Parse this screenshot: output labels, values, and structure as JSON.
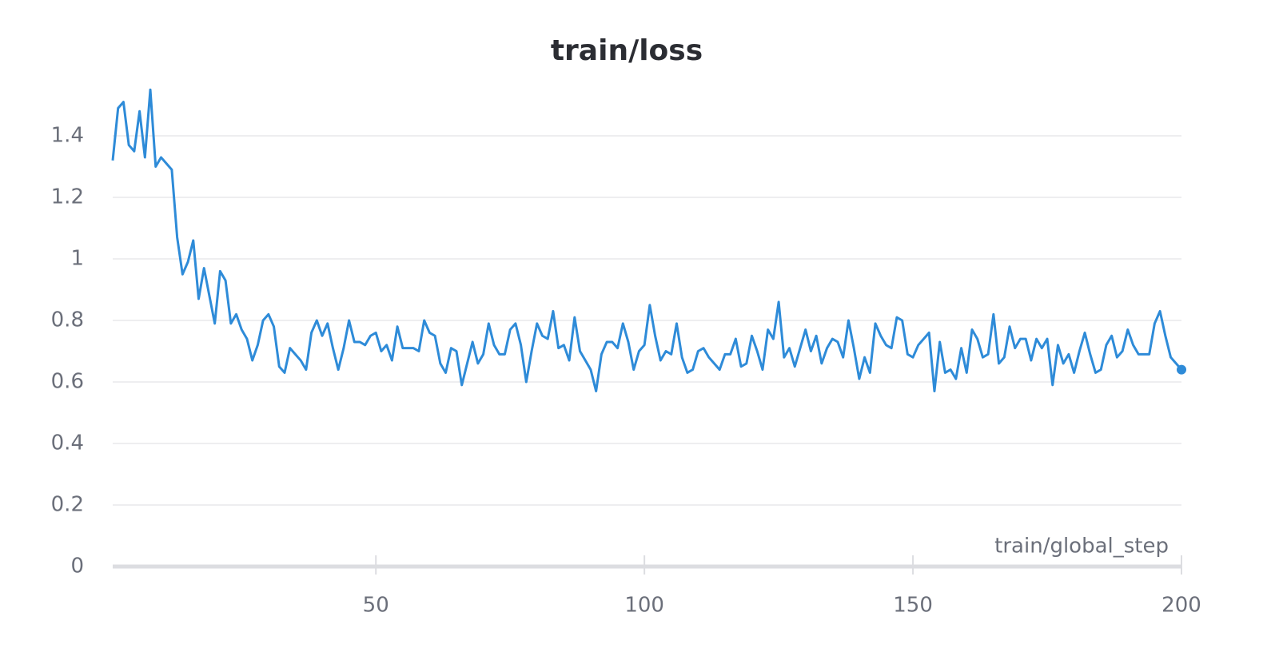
{
  "chart_data": {
    "type": "line",
    "title": "train/loss",
    "x_label": "train/global_step",
    "x": [
      1,
      2,
      3,
      4,
      5,
      6,
      7,
      8,
      9,
      10,
      11,
      12,
      13,
      14,
      15,
      16,
      17,
      18,
      19,
      20,
      21,
      22,
      23,
      24,
      25,
      26,
      27,
      28,
      29,
      30,
      31,
      32,
      33,
      34,
      35,
      36,
      37,
      38,
      39,
      40,
      41,
      42,
      43,
      44,
      45,
      46,
      47,
      48,
      49,
      50,
      51,
      52,
      53,
      54,
      55,
      56,
      57,
      58,
      59,
      60,
      61,
      62,
      63,
      64,
      65,
      66,
      67,
      68,
      69,
      70,
      71,
      72,
      73,
      74,
      75,
      76,
      77,
      78,
      79,
      80,
      81,
      82,
      83,
      84,
      85,
      86,
      87,
      88,
      89,
      90,
      91,
      92,
      93,
      94,
      95,
      96,
      97,
      98,
      99,
      100,
      101,
      102,
      103,
      104,
      105,
      106,
      107,
      108,
      109,
      110,
      111,
      112,
      113,
      114,
      115,
      116,
      117,
      118,
      119,
      120,
      121,
      122,
      123,
      124,
      125,
      126,
      127,
      128,
      129,
      130,
      131,
      132,
      133,
      134,
      135,
      136,
      137,
      138,
      139,
      140,
      141,
      142,
      143,
      144,
      145,
      146,
      147,
      148,
      149,
      150,
      151,
      152,
      153,
      154,
      155,
      156,
      157,
      158,
      159,
      160,
      161,
      162,
      163,
      164,
      165,
      166,
      167,
      168,
      169,
      170,
      171,
      172,
      173,
      174,
      175,
      176,
      177,
      178,
      179,
      180,
      181,
      182,
      183,
      184,
      185,
      186,
      187,
      188,
      189,
      190,
      191,
      192,
      193,
      194,
      195,
      196,
      197,
      198,
      199,
      200
    ],
    "series": [
      {
        "name": "train/loss",
        "color": "#2e8bd8",
        "values": [
          1.32,
          1.49,
          1.51,
          1.37,
          1.35,
          1.48,
          1.33,
          1.55,
          1.3,
          1.33,
          1.31,
          1.29,
          1.07,
          0.95,
          0.99,
          1.06,
          0.87,
          0.97,
          0.88,
          0.79,
          0.96,
          0.93,
          0.79,
          0.82,
          0.77,
          0.74,
          0.67,
          0.72,
          0.8,
          0.82,
          0.78,
          0.65,
          0.63,
          0.71,
          0.69,
          0.67,
          0.64,
          0.76,
          0.8,
          0.75,
          0.79,
          0.71,
          0.64,
          0.71,
          0.8,
          0.73,
          0.73,
          0.72,
          0.75,
          0.76,
          0.7,
          0.72,
          0.67,
          0.78,
          0.71,
          0.71,
          0.71,
          0.7,
          0.8,
          0.76,
          0.75,
          0.66,
          0.63,
          0.71,
          0.7,
          0.59,
          0.66,
          0.73,
          0.66,
          0.69,
          0.79,
          0.72,
          0.69,
          0.69,
          0.77,
          0.79,
          0.72,
          0.6,
          0.7,
          0.79,
          0.75,
          0.74,
          0.83,
          0.71,
          0.72,
          0.67,
          0.81,
          0.7,
          0.67,
          0.64,
          0.57,
          0.69,
          0.73,
          0.73,
          0.71,
          0.79,
          0.73,
          0.64,
          0.7,
          0.72,
          0.85,
          0.75,
          0.67,
          0.7,
          0.69,
          0.79,
          0.68,
          0.63,
          0.64,
          0.7,
          0.71,
          0.68,
          0.66,
          0.64,
          0.69,
          0.69,
          0.74,
          0.65,
          0.66,
          0.75,
          0.7,
          0.64,
          0.77,
          0.74,
          0.86,
          0.68,
          0.71,
          0.65,
          0.71,
          0.77,
          0.7,
          0.75,
          0.66,
          0.71,
          0.74,
          0.73,
          0.68,
          0.8,
          0.71,
          0.61,
          0.68,
          0.63,
          0.79,
          0.75,
          0.72,
          0.71,
          0.81,
          0.8,
          0.69,
          0.68,
          0.72,
          0.74,
          0.76,
          0.57,
          0.73,
          0.63,
          0.64,
          0.61,
          0.71,
          0.63,
          0.77,
          0.74,
          0.68,
          0.69,
          0.82,
          0.66,
          0.68,
          0.78,
          0.71,
          0.74,
          0.74,
          0.67,
          0.74,
          0.71,
          0.74,
          0.59,
          0.72,
          0.66,
          0.69,
          0.63,
          0.7,
          0.76,
          0.69,
          0.63,
          0.64,
          0.72,
          0.75,
          0.68,
          0.7,
          0.77,
          0.72,
          0.69,
          0.69,
          0.69,
          0.79,
          0.83,
          0.75,
          0.68,
          0.66,
          0.64
        ]
      }
    ],
    "xlim": [
      1,
      200
    ],
    "xticks": [
      50,
      100,
      150,
      200
    ],
    "ylim": [
      0,
      1.6
    ],
    "yticks": [
      0,
      0.2,
      0.4,
      0.6,
      0.8,
      1,
      1.2,
      1.4
    ],
    "grid": true
  }
}
